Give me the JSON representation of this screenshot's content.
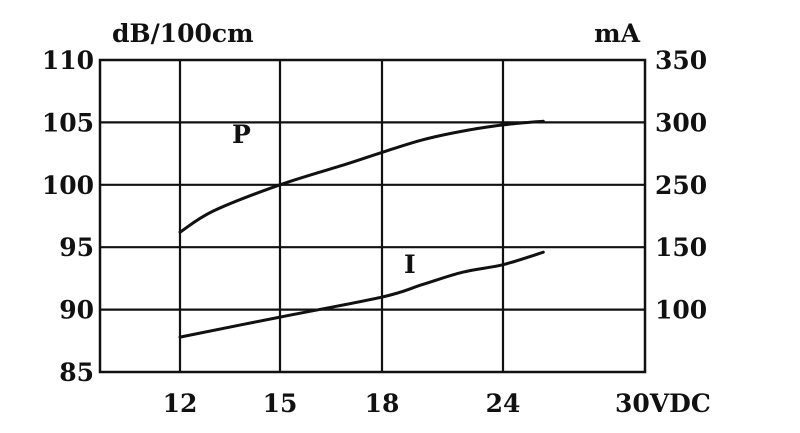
{
  "chart_data": {
    "type": "line",
    "left_unit": "dB/100cm",
    "right_unit": "mA",
    "x_tick_labels": [
      "12",
      "15",
      "18",
      "24",
      "30VDC"
    ],
    "y_left": {
      "ticks": [
        85,
        90,
        95,
        100,
        105,
        110
      ],
      "range": [
        85,
        110
      ]
    },
    "y_right": {
      "ticks": [
        100,
        150,
        250,
        300,
        350
      ]
    },
    "grid": true,
    "series": [
      {
        "name": "P",
        "axis": "left",
        "points": [
          [
            12,
            96.2
          ],
          [
            13,
            97.9
          ],
          [
            15,
            100.0
          ],
          [
            17,
            101.7
          ],
          [
            18,
            102.6
          ],
          [
            20,
            103.6
          ],
          [
            22,
            104.3
          ],
          [
            24,
            104.8
          ],
          [
            26,
            105.1
          ]
        ]
      },
      {
        "name": "I",
        "axis": "left",
        "points": [
          [
            12,
            87.8
          ],
          [
            15,
            89.4
          ],
          [
            18,
            91.0
          ],
          [
            20,
            92.0
          ],
          [
            22,
            93.0
          ],
          [
            24,
            93.6
          ],
          [
            26,
            94.6
          ]
        ]
      }
    ],
    "colors": {
      "line": "#111111",
      "grid": "#111111"
    }
  }
}
